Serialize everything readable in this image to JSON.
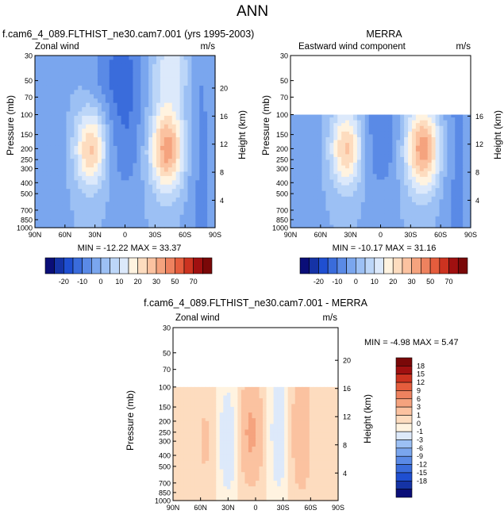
{
  "figure": {
    "title": "ANN"
  },
  "colors": {
    "ref_scale": [
      "#0a0e78",
      "#1533a6",
      "#1f4fd1",
      "#3a6cdb",
      "#5a8ae6",
      "#7aa6ee",
      "#9cc0f4",
      "#bcd6f8",
      "#dce9fb",
      "#fff3e0",
      "#fddcbf",
      "#fbc2a0",
      "#f5a37e",
      "#ee825f",
      "#e55d3d",
      "#cc3320",
      "#a01010",
      "#7a0808"
    ],
    "diff_scale": [
      "#0a0e78",
      "#1533a6",
      "#1f4fd1",
      "#3a6cdb",
      "#5a8ae6",
      "#7aa6ee",
      "#9cc0f4",
      "#dde9fa",
      "#fff3e0",
      "#fddcbf",
      "#fbc2a0",
      "#f5a37e",
      "#ee825f",
      "#e55d3d",
      "#cc3320",
      "#a01010",
      "#7a0808"
    ]
  },
  "chart_data": [
    {
      "type": "heatmap",
      "id": "model",
      "title": "f.cam6_4_089.FLTHIST_ne30.cam7.001 (yrs 1995-2003)",
      "left_label": "Zonal wind",
      "units": "m/s",
      "ylabel": "Pressure (mb)",
      "ylabel_right": "Height (km)",
      "y_ticks": [
        "30",
        "50",
        "70",
        "100",
        "150",
        "200",
        "250",
        "300",
        "400",
        "500",
        "700",
        "850",
        "1000"
      ],
      "y_ticks_right": [
        "20",
        "16",
        "12",
        "8",
        "4"
      ],
      "x_ticks": [
        "90N",
        "60N",
        "30N",
        "0",
        "30S",
        "60S",
        "90S"
      ],
      "stats": "MIN = -12.22  MAX = 33.37",
      "data_top_mb": 30,
      "min": -12.22,
      "max": 33.37
    },
    {
      "type": "heatmap",
      "id": "merra",
      "title": "MERRA",
      "left_label": "Eastward wind component",
      "units": "m/s",
      "ylabel": "Pressure (mb)",
      "ylabel_right": "Height (km)",
      "y_ticks": [
        "30",
        "50",
        "70",
        "100",
        "150",
        "200",
        "250",
        "300",
        "400",
        "500",
        "700",
        "850",
        "1000"
      ],
      "y_ticks_right": [
        "16",
        "12",
        "8",
        "4"
      ],
      "x_ticks": [
        "90N",
        "60N",
        "30N",
        "0",
        "30S",
        "60S",
        "90S"
      ],
      "stats": "MIN = -10.17  MAX = 31.16",
      "data_top_mb": 100,
      "min": -10.17,
      "max": 31.16
    },
    {
      "type": "heatmap",
      "id": "diff",
      "title": "f.cam6_4_089.FLTHIST_ne30.cam7.001 - MERRA",
      "left_label": "Zonal wind",
      "units": "m/s",
      "ylabel": "Pressure (mb)",
      "ylabel_right": "Height (km)",
      "y_ticks": [
        "30",
        "50",
        "70",
        "100",
        "150",
        "200",
        "250",
        "300",
        "400",
        "500",
        "700",
        "850",
        "1000"
      ],
      "y_ticks_right": [
        "20",
        "16",
        "12",
        "8",
        "4"
      ],
      "x_ticks": [
        "90N",
        "60N",
        "30N",
        "0",
        "30S",
        "60S",
        "90S"
      ],
      "stats": "MIN =  -4.98  MAX =   5.47",
      "data_top_mb": 100,
      "min": -4.98,
      "max": 5.47
    }
  ],
  "colorbars": {
    "ref": {
      "labels": [
        "-20",
        "-10",
        "0",
        "10",
        "20",
        "30",
        "50",
        "70"
      ]
    },
    "diff": {
      "labels": [
        "18",
        "15",
        "12",
        "9",
        "6",
        "3",
        "1",
        "0",
        "-1",
        "-3",
        "-6",
        "-9",
        "-12",
        "-15",
        "-18"
      ]
    }
  }
}
